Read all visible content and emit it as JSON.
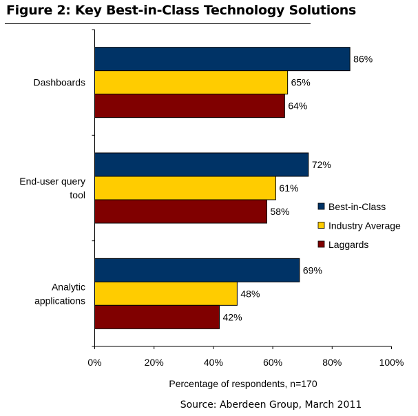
{
  "title": "Figure 2: Key Best-in-Class Technology Solutions",
  "source": "Source: Aberdeen Group, March 2011",
  "chart_data": {
    "type": "bar",
    "orientation": "horizontal",
    "categories": [
      [
        "Dashboards"
      ],
      [
        "End-user query",
        "tool"
      ],
      [
        "Analytic",
        "applications"
      ]
    ],
    "series": [
      {
        "name": "Best-in-Class",
        "color": "#003366",
        "values": [
          86,
          72,
          69
        ]
      },
      {
        "name": "Industry Average",
        "color": "#FFCC00",
        "values": [
          65,
          61,
          48
        ]
      },
      {
        "name": "Laggards",
        "color": "#800000",
        "values": [
          64,
          58,
          42
        ]
      }
    ],
    "xlabel": "Percentage of respondents, n=170",
    "xlim": [
      0,
      100
    ],
    "xticks": [
      "0%",
      "20%",
      "40%",
      "60%",
      "80%",
      "100%"
    ],
    "value_suffix": "%",
    "grid": false,
    "legend": "right"
  }
}
